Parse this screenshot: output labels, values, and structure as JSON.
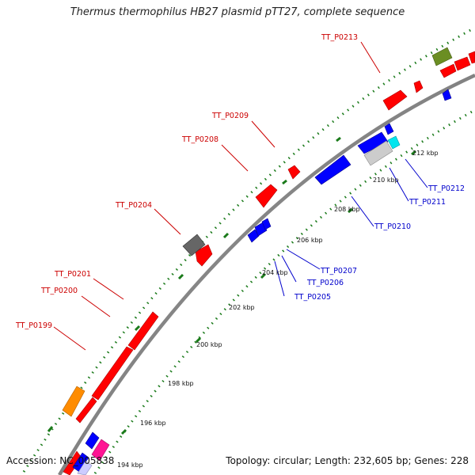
{
  "title": "Thermus thermophilus HB27 plasmid pTT27, complete sequence",
  "accession_text": "Accession: NC_005838",
  "topology_text": "Topology: circular; Length: 232,605 bp; Genes: 228",
  "kbp_labels": [
    "194 kbp",
    "196 kbp",
    "198 kbp",
    "200 kbp",
    "202 kbp",
    "204 kbp",
    "206 kbp",
    "208 kbp",
    "210 kbp",
    "212 kbp"
  ],
  "gene_labels": {
    "outer": [
      "TT_P0199",
      "TT_P0200",
      "TT_P0201",
      "TT_P0204",
      "TT_P0208",
      "TT_P0209",
      "TT_P0213"
    ],
    "inner": [
      "TT_P0205",
      "TT_P0206",
      "TT_P0207",
      "TT_P0210",
      "TT_P0211",
      "TT_P0212"
    ]
  },
  "colors": {
    "forward_gene": "#ff0000",
    "reverse_gene": "#0000ff",
    "grey_gene": "#666666",
    "light_grey_gene": "#cccccc",
    "cyan_gene": "#00e5ee",
    "olive_gene": "#6b8e23",
    "orange_gene": "#ff8c00",
    "pink_gene": "#ff1493",
    "backbone": "#808080",
    "gc_tick": "#1a7a1a",
    "outer_label": "#cc0000",
    "inner_label": "#0000cc"
  }
}
